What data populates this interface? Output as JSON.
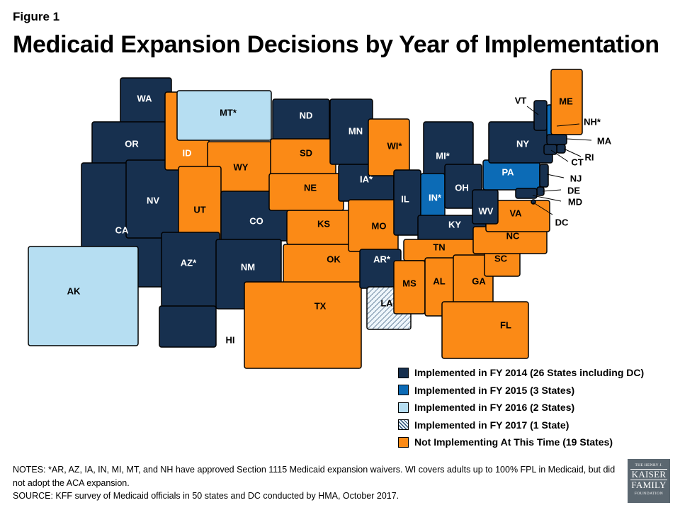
{
  "figure_label": "Figure 1",
  "title": "Medicaid Expansion Decisions by Year of Implementation",
  "colors": {
    "fy2014": "#17304f",
    "fy2015": "#0c6bb6",
    "fy2016": "#b6def2",
    "fy2017": "#eef6fb",
    "not_implementing": "#fb8a16",
    "border": "#000000"
  },
  "legend": [
    {
      "key": "fy2014",
      "label": "Implemented in FY 2014 (26 States including DC)"
    },
    {
      "key": "fy2015",
      "label": "Implemented in FY 2015 (3 States)"
    },
    {
      "key": "fy2016",
      "label": "Implemented in FY 2016 (2 States)"
    },
    {
      "key": "fy2017",
      "label": "Implemented in FY 2017 (1 State)",
      "pattern": "hatched"
    },
    {
      "key": "not_implementing",
      "label": "Not Implementing At This Time (19 States)"
    }
  ],
  "states": [
    {
      "label": "WA",
      "status": "fy2014"
    },
    {
      "label": "OR",
      "status": "fy2014"
    },
    {
      "label": "CA",
      "status": "fy2014"
    },
    {
      "label": "NV",
      "status": "fy2014"
    },
    {
      "label": "ID",
      "status": "not_implementing"
    },
    {
      "label": "MT*",
      "status": "fy2016"
    },
    {
      "label": "WY",
      "status": "not_implementing"
    },
    {
      "label": "UT",
      "status": "not_implementing"
    },
    {
      "label": "AZ*",
      "status": "fy2014"
    },
    {
      "label": "CO",
      "status": "fy2014"
    },
    {
      "label": "NM",
      "status": "fy2014"
    },
    {
      "label": "ND",
      "status": "fy2014"
    },
    {
      "label": "SD",
      "status": "not_implementing"
    },
    {
      "label": "NE",
      "status": "not_implementing"
    },
    {
      "label": "KS",
      "status": "not_implementing"
    },
    {
      "label": "OK",
      "status": "not_implementing"
    },
    {
      "label": "TX",
      "status": "not_implementing"
    },
    {
      "label": "MN",
      "status": "fy2014"
    },
    {
      "label": "IA*",
      "status": "fy2014"
    },
    {
      "label": "MO",
      "status": "not_implementing"
    },
    {
      "label": "AR*",
      "status": "fy2014"
    },
    {
      "label": "LA",
      "status": "fy2017"
    },
    {
      "label": "WI*",
      "status": "not_implementing"
    },
    {
      "label": "IL",
      "status": "fy2014"
    },
    {
      "label": "MI*",
      "status": "fy2014"
    },
    {
      "label": "IN*",
      "status": "fy2015"
    },
    {
      "label": "OH",
      "status": "fy2014"
    },
    {
      "label": "KY",
      "status": "fy2014"
    },
    {
      "label": "TN",
      "status": "not_implementing"
    },
    {
      "label": "MS",
      "status": "not_implementing"
    },
    {
      "label": "AL",
      "status": "not_implementing"
    },
    {
      "label": "GA",
      "status": "not_implementing"
    },
    {
      "label": "FL",
      "status": "not_implementing"
    },
    {
      "label": "SC",
      "status": "not_implementing"
    },
    {
      "label": "NC",
      "status": "not_implementing"
    },
    {
      "label": "VA",
      "status": "not_implementing"
    },
    {
      "label": "WV",
      "status": "fy2014"
    },
    {
      "label": "PA",
      "status": "fy2015"
    },
    {
      "label": "NY",
      "status": "fy2014"
    },
    {
      "label": "VT",
      "status": "fy2014"
    },
    {
      "label": "NH*",
      "status": "fy2015"
    },
    {
      "label": "ME",
      "status": "not_implementing"
    },
    {
      "label": "MA",
      "status": "fy2014"
    },
    {
      "label": "RI",
      "status": "fy2014"
    },
    {
      "label": "CT",
      "status": "fy2014"
    },
    {
      "label": "NJ",
      "status": "fy2014"
    },
    {
      "label": "DE",
      "status": "fy2014"
    },
    {
      "label": "MD",
      "status": "fy2014"
    },
    {
      "label": "DC",
      "status": "fy2014"
    },
    {
      "label": "AK",
      "status": "fy2016"
    },
    {
      "label": "HI",
      "status": "fy2014"
    }
  ],
  "notes": [
    "NOTES: *AR, AZ, IA, IN, MI, MT, and NH have approved Section 1115 Medicaid expansion waivers. WI covers adults up to 100% FPL in Medicaid, but did not adopt the ACA expansion.",
    "SOURCE: KFF survey of Medicaid officials in 50 states and DC conducted by HMA, October 2017."
  ],
  "logo": {
    "line1": "THE HENRY J.",
    "line2": "KAISER",
    "line3": "FAMILY",
    "line4": "FOUNDATION"
  }
}
